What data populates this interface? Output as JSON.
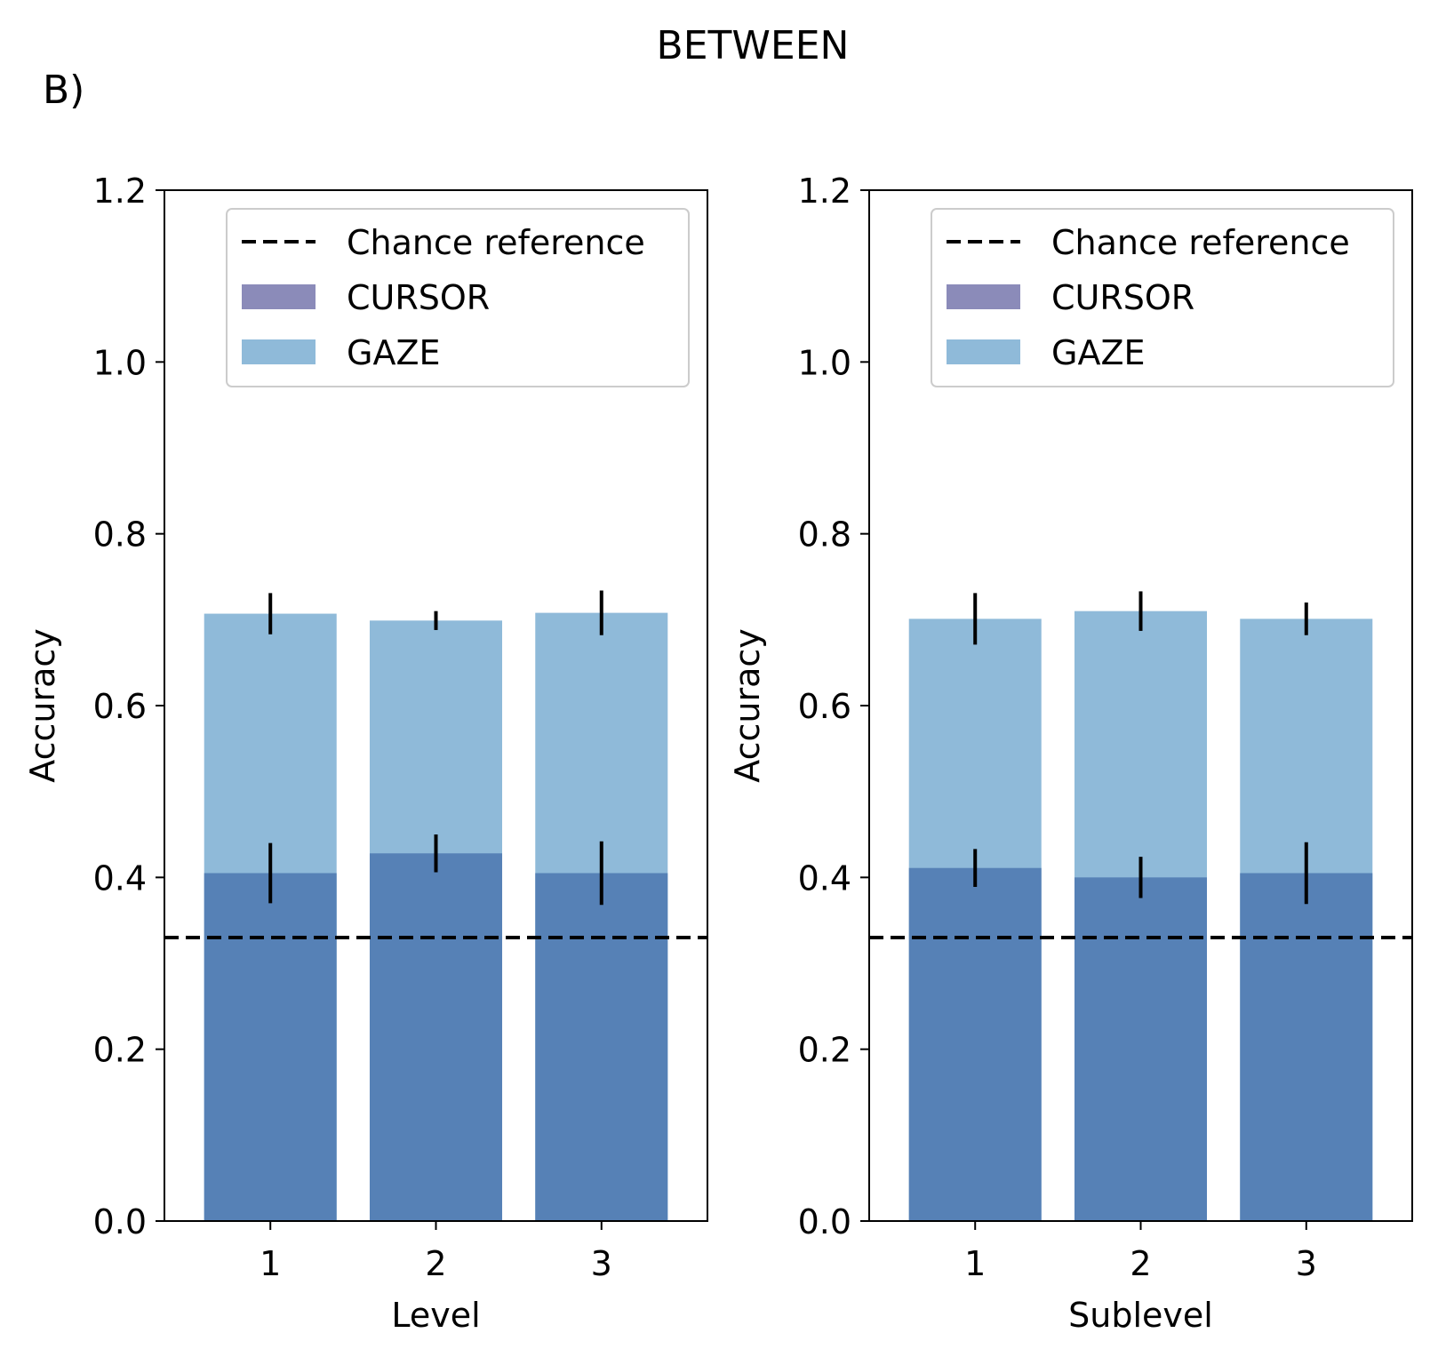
{
  "figure": {
    "title": "BETWEEN",
    "panel_label": "B)"
  },
  "colors": {
    "cursor": "#8B8BB9",
    "gaze": "#8FBAD9",
    "overlap": "#5681B6",
    "chance_line": "#000000",
    "error_bar": "#000000"
  },
  "chart_data": [
    {
      "type": "bar",
      "categories": [
        "1",
        "2",
        "3"
      ],
      "xlabel": "Level",
      "ylabel": "Accuracy",
      "ylim": [
        0,
        1.2
      ],
      "yticks": [
        "0.0",
        "0.2",
        "0.4",
        "0.6",
        "0.8",
        "1.0",
        "1.2"
      ],
      "legend_position": "upper-right",
      "legend": [
        "Chance reference",
        "CURSOR",
        "GAZE"
      ],
      "chance_reference": 0.33,
      "series": [
        {
          "name": "CURSOR",
          "values": [
            0.405,
            0.428,
            0.405
          ],
          "errors": [
            0.035,
            0.022,
            0.037
          ]
        },
        {
          "name": "GAZE",
          "values": [
            0.707,
            0.699,
            0.708
          ],
          "errors": [
            0.024,
            0.011,
            0.026
          ]
        }
      ]
    },
    {
      "type": "bar",
      "categories": [
        "1",
        "2",
        "3"
      ],
      "xlabel": "Sublevel",
      "ylabel": "Accuracy",
      "ylim": [
        0,
        1.2
      ],
      "yticks": [
        "0.0",
        "0.2",
        "0.4",
        "0.6",
        "0.8",
        "1.0",
        "1.2"
      ],
      "legend_position": "upper-right",
      "legend": [
        "Chance reference",
        "CURSOR",
        "GAZE"
      ],
      "chance_reference": 0.33,
      "series": [
        {
          "name": "CURSOR",
          "values": [
            0.411,
            0.4,
            0.405
          ],
          "errors": [
            0.022,
            0.024,
            0.036
          ]
        },
        {
          "name": "GAZE",
          "values": [
            0.701,
            0.71,
            0.701
          ],
          "errors": [
            0.03,
            0.023,
            0.019
          ]
        }
      ]
    }
  ]
}
